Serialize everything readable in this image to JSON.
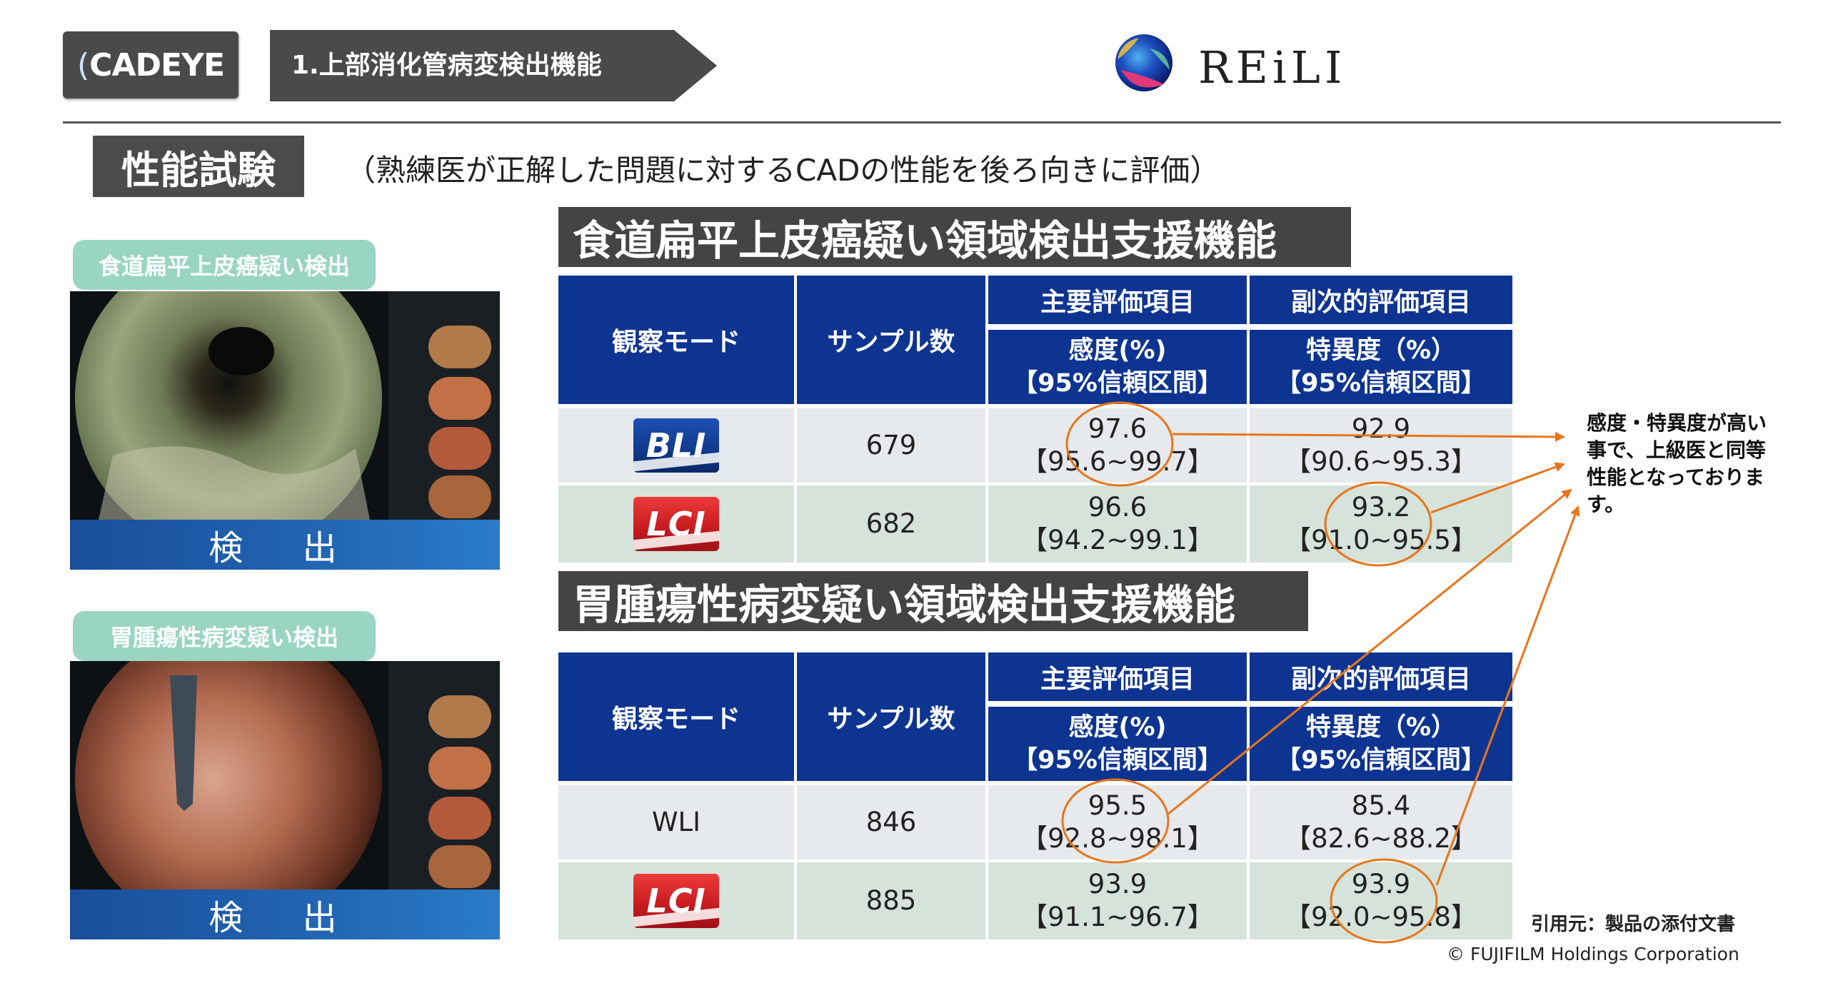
{
  "header": {
    "logo_text": "CADEYE",
    "section_tag": "1.上部消化管病変検出機能",
    "brand_text": "REiLI"
  },
  "performance": {
    "title": "性能試験",
    "subtitle": "（熟練医が正解した問題に対するCADの性能を後ろ向きに評価）"
  },
  "left_panels": [
    {
      "label": "食道扁平上皮癌疑い検出",
      "detect_text": "検 出"
    },
    {
      "label": "胃腫瘍性病変疑い検出",
      "detect_text": "検 出"
    }
  ],
  "tables": [
    {
      "title": "食道扁平上皮癌疑い領域検出支援機能",
      "headers": {
        "mode": "観察モード",
        "samples": "サンプル数",
        "primary_group": "主要評価項目",
        "secondary_group": "副次的評価項目",
        "sensitivity_1": "感度(%)",
        "sensitivity_2": "【95%信頼区間】",
        "specificity_1": "特異度（%）",
        "specificity_2": "【95%信頼区間】"
      },
      "rows": [
        {
          "mode": "BLI",
          "samples": "679",
          "sens": "97.6",
          "sens_ci": "【95.6~99.7】",
          "spec": "92.9",
          "spec_ci": "【90.6~95.3】"
        },
        {
          "mode": "LCI",
          "samples": "682",
          "sens": "96.6",
          "sens_ci": "【94.2~99.1】",
          "spec": "93.2",
          "spec_ci": "【91.0~95.5】"
        }
      ]
    },
    {
      "title": "胃腫瘍性病変疑い領域検出支援機能",
      "headers": {
        "mode": "観察モード",
        "samples": "サンプル数",
        "primary_group": "主要評価項目",
        "secondary_group": "副次的評価項目",
        "sensitivity_1": "感度(%)",
        "sensitivity_2": "【95%信頼区間】",
        "specificity_1": "特異度（%）",
        "specificity_2": "【95%信頼区間】"
      },
      "rows": [
        {
          "mode": "WLI",
          "samples": "846",
          "sens": "95.5",
          "sens_ci": "【92.8~98.1】",
          "spec": "85.4",
          "spec_ci": "【82.6~88.2】"
        },
        {
          "mode": "LCI",
          "samples": "885",
          "sens": "93.9",
          "sens_ci": "【91.1~96.7】",
          "spec": "93.9",
          "spec_ci": "【92.0~95.8】"
        }
      ]
    }
  ],
  "annotation": {
    "note": "感度・特異度が高い事で、上級医と同等性能となっております。",
    "source": "引用元：製品の添付文書",
    "copyright": "© FUJIFILM Holdings Corporation"
  },
  "colors": {
    "table_header": "#0e3491",
    "row_light": "#e6eaec",
    "row_green": "#d5e3db",
    "highlight": "#e8751a",
    "pill": "#9ad5c3",
    "title_bar": "#444444"
  }
}
